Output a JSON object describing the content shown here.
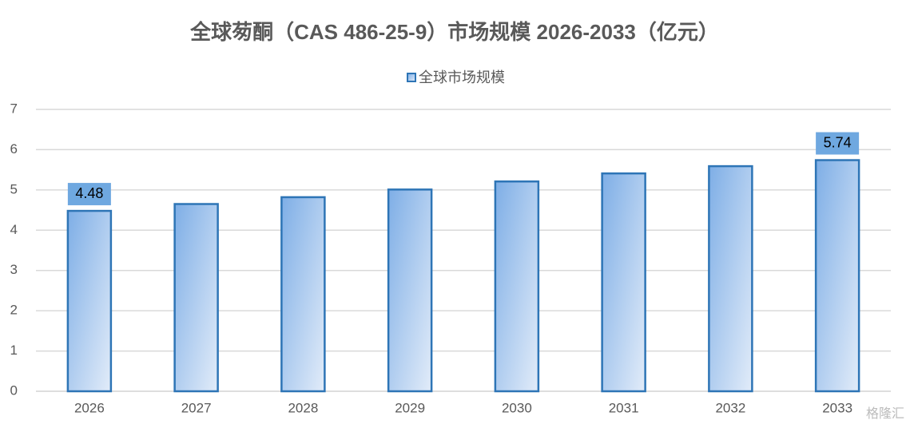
{
  "chart_data": {
    "type": "bar",
    "title": "全球茐酮（CAS 486-25-9）市场规模 2026-2033（亿元）",
    "categories": [
      "2026",
      "2027",
      "2028",
      "2029",
      "2030",
      "2031",
      "2032",
      "2033"
    ],
    "series": [
      {
        "name": "全球市场规模",
        "color": "#2e75b6",
        "values": [
          4.48,
          4.65,
          4.82,
          5.01,
          5.21,
          5.41,
          5.59,
          5.74
        ],
        "value_labels": [
          "4.48",
          null,
          null,
          null,
          null,
          null,
          null,
          "5.74"
        ]
      }
    ],
    "ylim": [
      0,
      7
    ],
    "yticks": [
      0,
      1,
      2,
      3,
      4,
      5,
      6,
      7
    ],
    "grid": true,
    "legend": "top",
    "watermark": "格隆汇"
  }
}
